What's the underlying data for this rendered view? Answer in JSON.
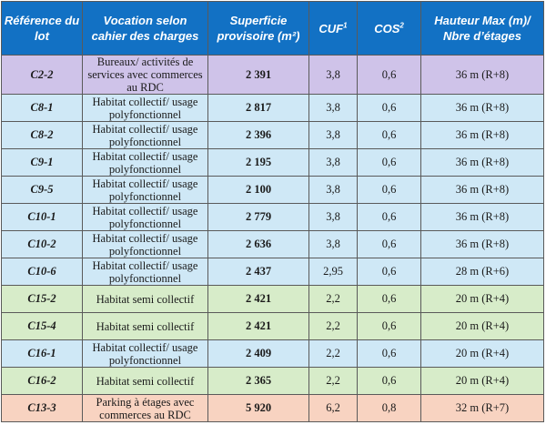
{
  "header": {
    "ref": "Référence du lot",
    "vocation": "Vocation selon cahier des charges",
    "superficie": "Superficie provisoire (m²)",
    "cuf": "CUF",
    "cuf_sup": "1",
    "cos": "COS",
    "cos_sup": "2",
    "hauteur": "Hauteur Max (m)/ Nbre d’étages"
  },
  "rows": [
    {
      "ref": "C2-2",
      "vocation": "Bureaux/ activités de services avec commerces au RDC",
      "superficie": "2 391",
      "cuf": "3,8",
      "cos": "0,6",
      "hauteur": "36 m (R+8)",
      "color": "#cfc3e9"
    },
    {
      "ref": "C8-1",
      "vocation": "Habitat collectif/ usage polyfonctionnel",
      "superficie": "2 817",
      "cuf": "3,8",
      "cos": "0,6",
      "hauteur": "36 m (R+8)",
      "color": "#cfe8f6"
    },
    {
      "ref": "C8-2",
      "vocation": "Habitat collectif/ usage polyfonctionnel",
      "superficie": "2 396",
      "cuf": "3,8",
      "cos": "0,6",
      "hauteur": "36 m (R+8)",
      "color": "#cfe8f6"
    },
    {
      "ref": "C9-1",
      "vocation": "Habitat collectif/ usage polyfonctionnel",
      "superficie": "2 195",
      "cuf": "3,8",
      "cos": "0,6",
      "hauteur": "36 m (R+8)",
      "color": "#cfe8f6"
    },
    {
      "ref": "C9-5",
      "vocation": "Habitat collectif/ usage polyfonctionnel",
      "superficie": "2 100",
      "cuf": "3,8",
      "cos": "0,6",
      "hauteur": "36 m (R+8)",
      "color": "#cfe8f6"
    },
    {
      "ref": "C10-1",
      "vocation": "Habitat collectif/ usage polyfonctionnel",
      "superficie": "2 779",
      "cuf": "3,8",
      "cos": "0,6",
      "hauteur": "36 m (R+8)",
      "color": "#cfe8f6"
    },
    {
      "ref": "C10-2",
      "vocation": "Habitat collectif/ usage polyfonctionnel",
      "superficie": "2 636",
      "cuf": "3,8",
      "cos": "0,6",
      "hauteur": "36 m (R+8)",
      "color": "#cfe8f6"
    },
    {
      "ref": "C10-6",
      "vocation": "Habitat collectif/ usage polyfonctionnel",
      "superficie": "2 437",
      "cuf": "2,95",
      "cos": "0,6",
      "hauteur": "28 m (R+6)",
      "color": "#cfe8f6"
    },
    {
      "ref": "C15-2",
      "vocation": "Habitat semi collectif",
      "superficie": "2 421",
      "cuf": "2,2",
      "cos": "0,6",
      "hauteur": "20 m (R+4)",
      "color": "#d7ecc9"
    },
    {
      "ref": "C15-4",
      "vocation": "Habitat semi collectif",
      "superficie": "2 421",
      "cuf": "2,2",
      "cos": "0,6",
      "hauteur": "20 m (R+4)",
      "color": "#d7ecc9"
    },
    {
      "ref": "C16-1",
      "vocation": "Habitat collectif/ usage polyfonctionnel",
      "superficie": "2 409",
      "cuf": "2,2",
      "cos": "0,6",
      "hauteur": "20 m (R+4)",
      "color": "#cfe8f6"
    },
    {
      "ref": "C16-2",
      "vocation": "Habitat semi collectif",
      "superficie": "2 365",
      "cuf": "2,2",
      "cos": "0,6",
      "hauteur": "20 m (R+4)",
      "color": "#d7ecc9"
    },
    {
      "ref": "C13-3",
      "vocation": "Parking à étages avec commerces au RDC",
      "superficie": "5 920",
      "cuf": "6,2",
      "cos": "0,8",
      "hauteur": "32 m (R+7)",
      "color": "#f8d3c1"
    }
  ]
}
